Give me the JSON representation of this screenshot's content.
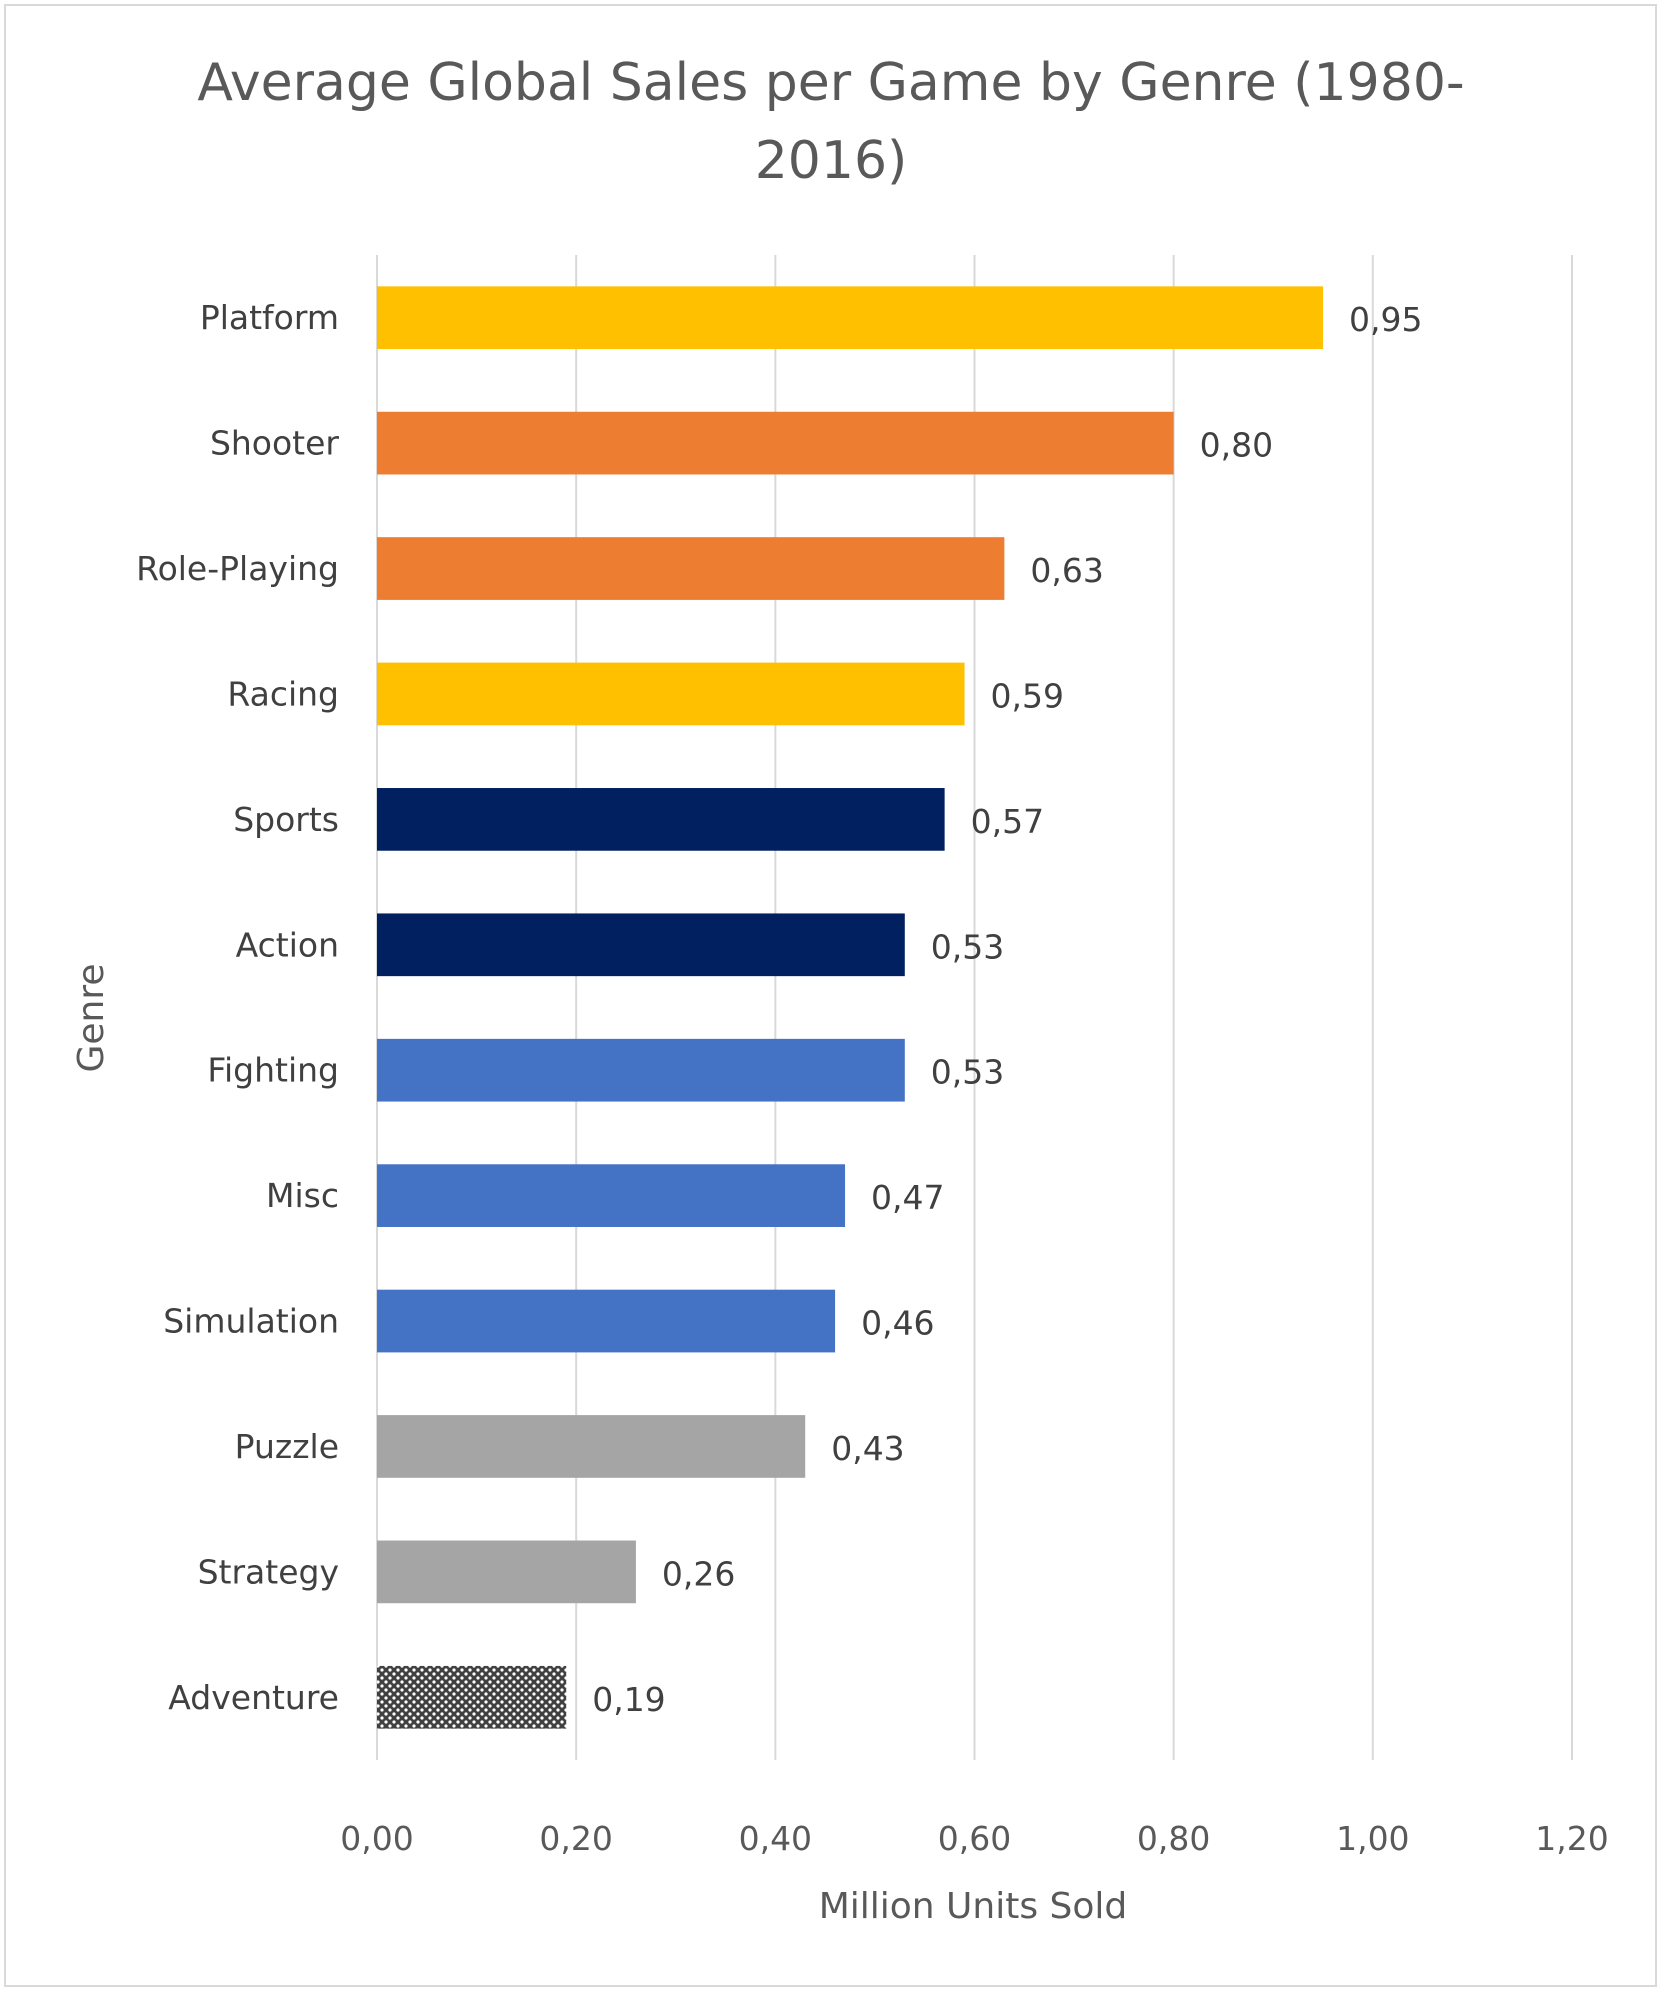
{
  "chart_data": {
    "type": "bar",
    "orientation": "horizontal",
    "title_lines": [
      "Average Global Sales per Game by Genre (1980-",
      "2016)"
    ],
    "xlabel": "Million Units Sold",
    "ylabel": "Genre",
    "xlim": [
      0,
      1.2
    ],
    "x_ticks": [
      "0,00",
      "0,20",
      "0,40",
      "0,60",
      "0,80",
      "1,00",
      "1,20"
    ],
    "grid": "vertical",
    "legend": "none",
    "bars": [
      {
        "category": "Platform",
        "value": 0.95,
        "label": "0,95",
        "color": "#FFC000"
      },
      {
        "category": "Shooter",
        "value": 0.8,
        "label": "0,80",
        "color": "#ED7D31"
      },
      {
        "category": "Role-Playing",
        "value": 0.63,
        "label": "0,63",
        "color": "#ED7D31"
      },
      {
        "category": "Racing",
        "value": 0.59,
        "label": "0,59",
        "color": "#FFC000"
      },
      {
        "category": "Sports",
        "value": 0.57,
        "label": "0,57",
        "color": "#002060"
      },
      {
        "category": "Action",
        "value": 0.53,
        "label": "0,53",
        "color": "#002060"
      },
      {
        "category": "Fighting",
        "value": 0.53,
        "label": "0,53",
        "color": "#4472C4"
      },
      {
        "category": "Misc",
        "value": 0.47,
        "label": "0,47",
        "color": "#4472C4"
      },
      {
        "category": "Simulation",
        "value": 0.46,
        "label": "0,46",
        "color": "#4472C4"
      },
      {
        "category": "Puzzle",
        "value": 0.43,
        "label": "0,43",
        "color": "#A5A5A5"
      },
      {
        "category": "Strategy",
        "value": 0.26,
        "label": "0,26",
        "color": "#A5A5A5"
      },
      {
        "category": "Adventure",
        "value": 0.19,
        "label": "0,19",
        "color": "pattern-dotted"
      }
    ],
    "colors": {
      "gridline": "#d9d9d9",
      "pattern_dark": "#404040",
      "pattern_light": "#ffffff"
    }
  }
}
